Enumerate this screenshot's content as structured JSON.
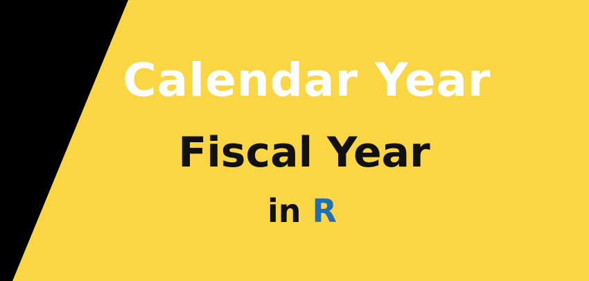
{
  "colors": {
    "background_yellow": "#fad544",
    "dark_band": "#000000",
    "title_color": "#ffffff",
    "subtitle_color": "#111111",
    "tagline_color": "#111111",
    "accent_r": "#1f6fb5"
  },
  "banner": {
    "title": "Calendar Year",
    "subtitle": "Fiscal Year",
    "tagline_prefix": "in",
    "tagline_accent": "R"
  }
}
